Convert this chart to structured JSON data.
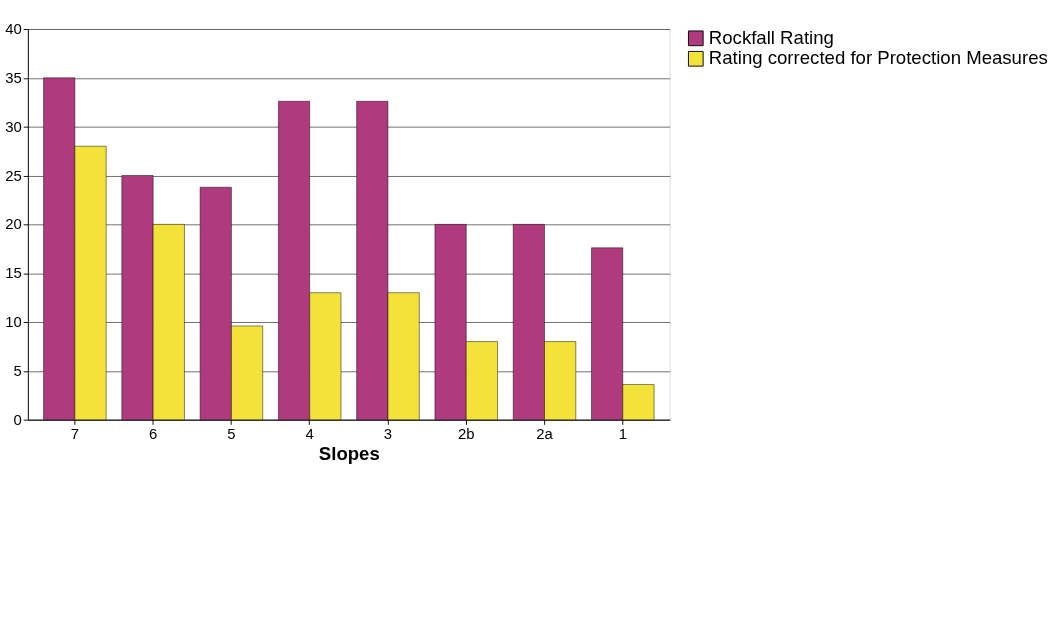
{
  "chart_data": {
    "type": "bar",
    "xlabel": "Slopes",
    "categories": [
      "7",
      "6",
      "5",
      "4",
      "3",
      "2b",
      "2a",
      "1"
    ],
    "series": [
      {
        "name": "Rockfall Rating",
        "color": "#b03a7e",
        "values": [
          35,
          25,
          23.8,
          32.6,
          32.6,
          20,
          20,
          17.6
        ]
      },
      {
        "name": "Rating corrected for Protection Measures",
        "color": "#f2e23a",
        "values": [
          28,
          20,
          9.6,
          13,
          13,
          8,
          8,
          3.6
        ]
      }
    ],
    "ylim": [
      0,
      40
    ],
    "yticks": [
      0,
      5,
      10,
      15,
      20,
      25,
      30,
      35,
      40
    ],
    "grid": "y",
    "legend": "right"
  }
}
